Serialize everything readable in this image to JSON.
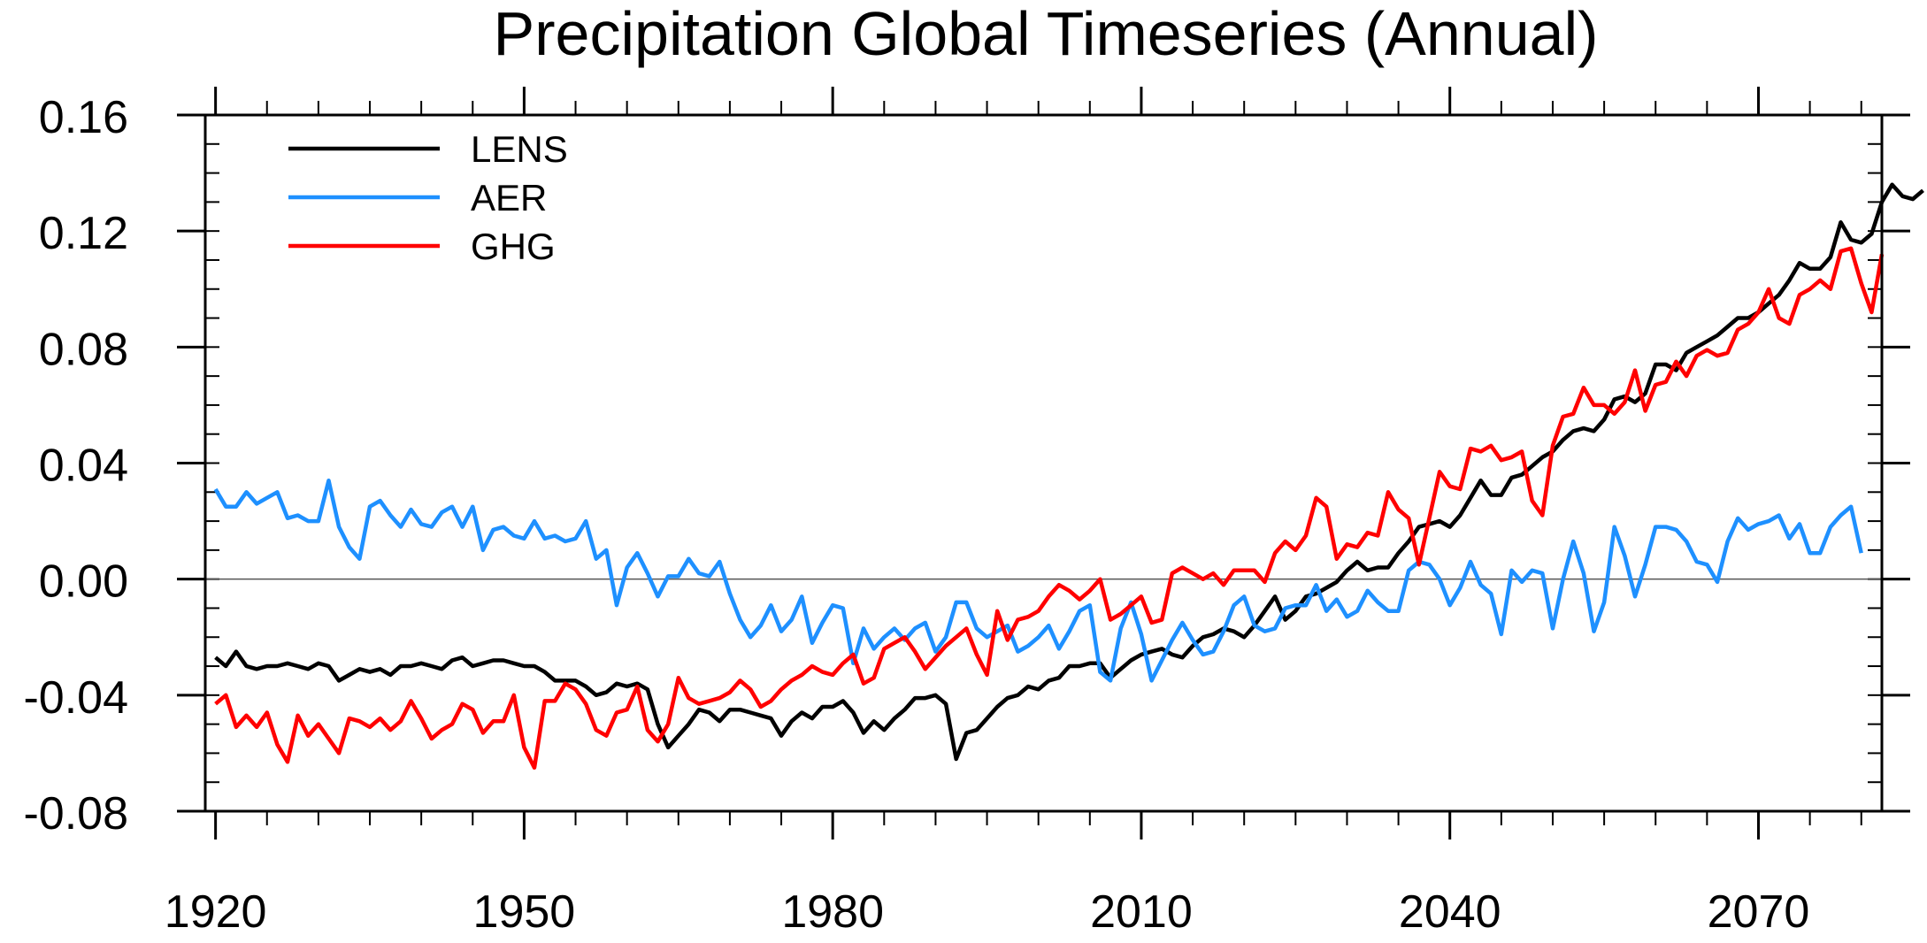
{
  "chart_data": {
    "type": "line",
    "title": "Precipitation Global Timeseries (Annual)",
    "xlabel": "",
    "ylabel": "",
    "xlim": [
      1919,
      2082
    ],
    "ylim": [
      -0.08,
      0.16
    ],
    "xticks": [
      1920,
      1950,
      1980,
      2010,
      2040,
      2070
    ],
    "xtick_labels": [
      "1920",
      "1950",
      "1980",
      "2010",
      "2040",
      "2070"
    ],
    "yticks": [
      -0.08,
      -0.04,
      0.0,
      0.04,
      0.08,
      0.12,
      0.16
    ],
    "ytick_labels": [
      "-0.08",
      "-0.04",
      "0.00",
      "0.04",
      "0.08",
      "0.12",
      "0.16"
    ],
    "reference_line": 0.0,
    "grid": false,
    "legend_position": "top-left",
    "x_start": 1920,
    "series": [
      {
        "name": "LENS",
        "color": "#000000",
        "values": [
          -0.027,
          -0.03,
          -0.025,
          -0.03,
          -0.031,
          -0.03,
          -0.03,
          -0.029,
          -0.03,
          -0.031,
          -0.029,
          -0.03,
          -0.035,
          -0.033,
          -0.031,
          -0.032,
          -0.031,
          -0.033,
          -0.03,
          -0.03,
          -0.029,
          -0.03,
          -0.031,
          -0.028,
          -0.027,
          -0.03,
          -0.029,
          -0.028,
          -0.028,
          -0.029,
          -0.03,
          -0.03,
          -0.032,
          -0.035,
          -0.035,
          -0.035,
          -0.037,
          -0.04,
          -0.039,
          -0.036,
          -0.037,
          -0.036,
          -0.038,
          -0.05,
          -0.058,
          -0.054,
          -0.05,
          -0.045,
          -0.046,
          -0.049,
          -0.045,
          -0.045,
          -0.046,
          -0.047,
          -0.048,
          -0.054,
          -0.049,
          -0.046,
          -0.048,
          -0.044,
          -0.044,
          -0.042,
          -0.046,
          -0.053,
          -0.049,
          -0.052,
          -0.048,
          -0.045,
          -0.041,
          -0.041,
          -0.04,
          -0.043,
          -0.062,
          -0.053,
          -0.052,
          -0.048,
          -0.044,
          -0.041,
          -0.04,
          -0.037,
          -0.038,
          -0.035,
          -0.034,
          -0.03,
          -0.03,
          -0.029,
          -0.029,
          -0.034,
          -0.031,
          -0.028,
          -0.026,
          -0.025,
          -0.024,
          -0.026,
          -0.027,
          -0.023,
          -0.02,
          -0.019,
          -0.017,
          -0.018,
          -0.02,
          -0.016,
          -0.011,
          -0.006,
          -0.014,
          -0.011,
          -0.006,
          -0.005,
          -0.003,
          -0.001,
          0.003,
          0.006,
          0.003,
          0.004,
          0.004,
          0.009,
          0.013,
          0.018,
          0.019,
          0.02,
          0.018,
          0.022,
          0.028,
          0.034,
          0.029,
          0.029,
          0.035,
          0.036,
          0.039,
          0.042,
          0.044,
          0.048,
          0.051,
          0.052,
          0.051,
          0.055,
          0.062,
          0.063,
          0.061,
          0.064,
          0.074,
          0.074,
          0.072,
          0.078,
          0.08,
          0.082,
          0.084,
          0.087,
          0.09,
          0.09,
          0.092,
          0.095,
          0.098,
          0.103,
          0.109,
          0.107,
          0.107,
          0.111,
          0.123,
          0.117,
          0.116,
          0.119,
          0.13,
          0.136,
          0.132,
          0.131,
          0.134
        ]
      },
      {
        "name": "AER",
        "color": "#1e90ff",
        "values": [
          0.031,
          0.025,
          0.025,
          0.03,
          0.026,
          0.028,
          0.03,
          0.021,
          0.022,
          0.02,
          0.02,
          0.034,
          0.018,
          0.011,
          0.007,
          0.025,
          0.027,
          0.022,
          0.018,
          0.024,
          0.019,
          0.018,
          0.023,
          0.025,
          0.018,
          0.025,
          0.01,
          0.017,
          0.018,
          0.015,
          0.014,
          0.02,
          0.014,
          0.015,
          0.013,
          0.014,
          0.02,
          0.007,
          0.01,
          -0.009,
          0.004,
          0.009,
          0.002,
          -0.006,
          0.001,
          0.001,
          0.007,
          0.002,
          0.001,
          0.006,
          -0.005,
          -0.014,
          -0.02,
          -0.016,
          -0.009,
          -0.018,
          -0.014,
          -0.006,
          -0.022,
          -0.015,
          -0.009,
          -0.01,
          -0.029,
          -0.017,
          -0.024,
          -0.02,
          -0.017,
          -0.021,
          -0.017,
          -0.015,
          -0.025,
          -0.02,
          -0.008,
          -0.008,
          -0.017,
          -0.02,
          -0.018,
          -0.016,
          -0.025,
          -0.023,
          -0.02,
          -0.016,
          -0.024,
          -0.018,
          -0.011,
          -0.009,
          -0.032,
          -0.035,
          -0.017,
          -0.008,
          -0.019,
          -0.035,
          -0.028,
          -0.021,
          -0.015,
          -0.021,
          -0.026,
          -0.025,
          -0.018,
          -0.009,
          -0.006,
          -0.016,
          -0.018,
          -0.017,
          -0.01,
          -0.009,
          -0.009,
          -0.002,
          -0.011,
          -0.007,
          -0.013,
          -0.011,
          -0.004,
          -0.008,
          -0.011,
          -0.011,
          0.003,
          0.006,
          0.005,
          0.0,
          -0.009,
          -0.003,
          0.006,
          -0.002,
          -0.005,
          -0.019,
          0.003,
          -0.001,
          0.003,
          0.002,
          -0.017,
          0.0,
          0.013,
          0.002,
          -0.018,
          -0.008,
          0.018,
          0.008,
          -0.006,
          0.005,
          0.018,
          0.018,
          0.017,
          0.013,
          0.006,
          0.005,
          -0.001,
          0.013,
          0.021,
          0.017,
          0.019,
          0.02,
          0.022,
          0.014,
          0.019,
          0.009,
          0.009,
          0.018,
          0.022,
          0.025,
          0.009
        ]
      },
      {
        "name": "GHG",
        "color": "#ff0000",
        "values": [
          -0.043,
          -0.04,
          -0.051,
          -0.047,
          -0.051,
          -0.046,
          -0.057,
          -0.063,
          -0.047,
          -0.054,
          -0.05,
          -0.055,
          -0.06,
          -0.048,
          -0.049,
          -0.051,
          -0.048,
          -0.052,
          -0.049,
          -0.042,
          -0.048,
          -0.055,
          -0.052,
          -0.05,
          -0.043,
          -0.045,
          -0.053,
          -0.049,
          -0.049,
          -0.04,
          -0.058,
          -0.065,
          -0.042,
          -0.042,
          -0.036,
          -0.038,
          -0.043,
          -0.052,
          -0.054,
          -0.046,
          -0.045,
          -0.037,
          -0.052,
          -0.056,
          -0.05,
          -0.034,
          -0.041,
          -0.043,
          -0.042,
          -0.041,
          -0.039,
          -0.035,
          -0.038,
          -0.044,
          -0.042,
          -0.038,
          -0.035,
          -0.033,
          -0.03,
          -0.032,
          -0.033,
          -0.029,
          -0.026,
          -0.036,
          -0.034,
          -0.024,
          -0.022,
          -0.02,
          -0.025,
          -0.031,
          -0.027,
          -0.023,
          -0.02,
          -0.017,
          -0.026,
          -0.033,
          -0.011,
          -0.021,
          -0.014,
          -0.013,
          -0.011,
          -0.006,
          -0.002,
          -0.004,
          -0.007,
          -0.004,
          0.0,
          -0.014,
          -0.012,
          -0.009,
          -0.006,
          -0.015,
          -0.014,
          0.002,
          0.004,
          0.002,
          0.0,
          0.002,
          -0.002,
          0.003,
          0.003,
          0.003,
          -0.001,
          0.009,
          0.013,
          0.01,
          0.015,
          0.028,
          0.025,
          0.007,
          0.012,
          0.011,
          0.016,
          0.015,
          0.03,
          0.024,
          0.021,
          0.005,
          0.021,
          0.037,
          0.032,
          0.031,
          0.045,
          0.044,
          0.046,
          0.041,
          0.042,
          0.044,
          0.027,
          0.022,
          0.046,
          0.056,
          0.057,
          0.066,
          0.06,
          0.06,
          0.057,
          0.061,
          0.072,
          0.058,
          0.067,
          0.068,
          0.075,
          0.07,
          0.077,
          0.079,
          0.077,
          0.078,
          0.086,
          0.088,
          0.092,
          0.1,
          0.09,
          0.088,
          0.098,
          0.1,
          0.103,
          0.1,
          0.113,
          0.114,
          0.102,
          0.092,
          0.112
        ]
      }
    ]
  }
}
